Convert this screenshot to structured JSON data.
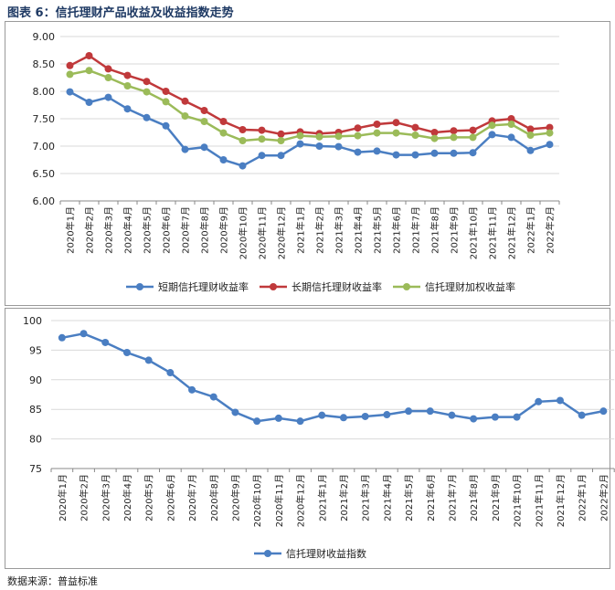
{
  "figure_title": "图表 6：信托理财产品收益及收益指数走势",
  "source": "数据来源：普益标准",
  "colors": {
    "short": "#4a7ec2",
    "long": "#c0393b",
    "weighted": "#9bbb59",
    "grid": "#d9d9d9",
    "axis": "#888888"
  },
  "chart_data": [
    {
      "type": "line",
      "title": "",
      "xlabel": "",
      "ylabel": "",
      "ylim": [
        6.0,
        9.0
      ],
      "y_ticks": [
        "9.00",
        "8.50",
        "8.00",
        "7.50",
        "7.00",
        "6.50",
        "6.00"
      ],
      "y_tick_values": [
        9.0,
        8.5,
        8.0,
        7.5,
        7.0,
        6.5,
        6.0
      ],
      "legend_position": "bottom",
      "categories": [
        "2020年1月",
        "2020年2月",
        "2020年3月",
        "2020年4月",
        "2020年5月",
        "2020年6月",
        "2020年7月",
        "2020年8月",
        "2020年9月",
        "2020年10月",
        "2020年11月",
        "2020年12月",
        "2021年1月",
        "2021年2月",
        "2021年3月",
        "2021年4月",
        "2021年5月",
        "2021年6月",
        "2021年7月",
        "2021年8月",
        "2021年9月",
        "2021年10月",
        "2021年11月",
        "2021年12月",
        "2022年1月",
        "2022年2月"
      ],
      "series": [
        {
          "name": "短期信托理财收益率",
          "color_key": "short",
          "values": [
            7.99,
            7.8,
            7.89,
            7.68,
            7.52,
            7.37,
            6.94,
            6.98,
            6.75,
            6.64,
            6.83,
            6.83,
            7.04,
            7.0,
            6.99,
            6.89,
            6.91,
            6.84,
            6.84,
            6.87,
            6.87,
            6.88,
            7.21,
            7.16,
            6.92,
            7.03
          ]
        },
        {
          "name": "长期信托理财收益率",
          "color_key": "long",
          "values": [
            8.47,
            8.65,
            8.41,
            8.29,
            8.18,
            8.0,
            7.82,
            7.65,
            7.45,
            7.3,
            7.29,
            7.22,
            7.26,
            7.23,
            7.25,
            7.33,
            7.4,
            7.43,
            7.34,
            7.25,
            7.28,
            7.29,
            7.46,
            7.5,
            7.31,
            7.34
          ]
        },
        {
          "name": "信托理财加权收益率",
          "color_key": "weighted",
          "values": [
            8.31,
            8.38,
            8.25,
            8.1,
            7.99,
            7.81,
            7.55,
            7.45,
            7.24,
            7.1,
            7.13,
            7.1,
            7.19,
            7.17,
            7.18,
            7.19,
            7.24,
            7.24,
            7.2,
            7.14,
            7.16,
            7.16,
            7.38,
            7.4,
            7.2,
            7.24
          ]
        }
      ]
    },
    {
      "type": "line",
      "title": "",
      "xlabel": "",
      "ylabel": "",
      "ylim": [
        75,
        100
      ],
      "y_ticks": [
        "100",
        "95",
        "90",
        "85",
        "80",
        "75"
      ],
      "y_tick_values": [
        100,
        95,
        90,
        85,
        80,
        75
      ],
      "legend_position": "bottom",
      "categories": [
        "2020年1月",
        "2020年2月",
        "2020年3月",
        "2020年4月",
        "2020年5月",
        "2020年6月",
        "2020年7月",
        "2020年8月",
        "2020年9月",
        "2020年10月",
        "2020年11月",
        "2020年12月",
        "2021年1月",
        "2021年2月",
        "2021年3月",
        "2021年4月",
        "2021年5月",
        "2021年6月",
        "2021年7月",
        "2021年8月",
        "2021年9月",
        "2021年10月",
        "2021年11月",
        "2021年12月",
        "2022年1月",
        "2022年2月"
      ],
      "series": [
        {
          "name": "信托理财收益指数",
          "color_key": "short",
          "values": [
            97.1,
            97.8,
            96.3,
            94.6,
            93.3,
            91.2,
            88.3,
            87.1,
            84.5,
            83.0,
            83.5,
            83.0,
            84.0,
            83.6,
            83.8,
            84.1,
            84.7,
            84.7,
            84.0,
            83.4,
            83.7,
            83.7,
            86.3,
            86.5,
            84.0,
            84.7
          ]
        }
      ]
    }
  ]
}
